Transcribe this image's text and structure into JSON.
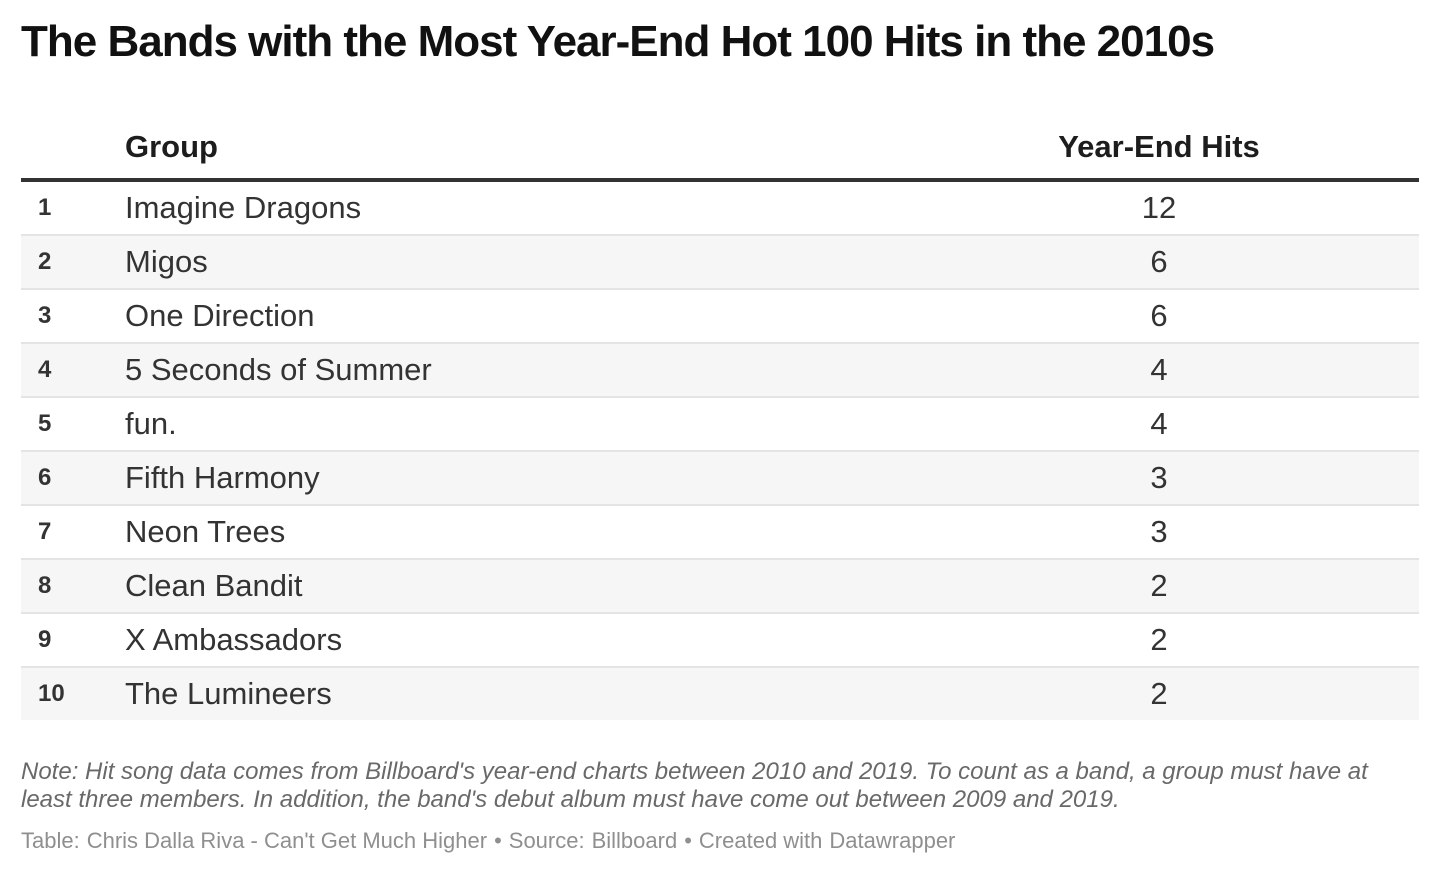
{
  "chart_data": {
    "type": "table",
    "title": "The Bands with the Most Year-End Hot 100 Hits in the 2010s",
    "columns": {
      "rank": "",
      "group": "Group",
      "hits": "Year-End Hits"
    },
    "rows": [
      {
        "rank": "1",
        "group": "Imagine Dragons",
        "hits": "12"
      },
      {
        "rank": "2",
        "group": "Migos",
        "hits": "6"
      },
      {
        "rank": "3",
        "group": "One Direction",
        "hits": "6"
      },
      {
        "rank": "4",
        "group": "5 Seconds of Summer",
        "hits": "4"
      },
      {
        "rank": "5",
        "group": "fun.",
        "hits": "4"
      },
      {
        "rank": "6",
        "group": "Fifth Harmony",
        "hits": "3"
      },
      {
        "rank": "7",
        "group": "Neon Trees",
        "hits": "3"
      },
      {
        "rank": "8",
        "group": "Clean Bandit",
        "hits": "2"
      },
      {
        "rank": "9",
        "group": "X Ambassadors",
        "hits": "2"
      },
      {
        "rank": "10",
        "group": "The Lumineers",
        "hits": "2"
      }
    ],
    "layout_hints": {
      "striped": true,
      "stripe_on": "even-rows",
      "rank_column": true,
      "hits_alignment": "center"
    }
  },
  "note": "Note: Hit song data comes from Billboard's year-end charts between 2010 and 2019. To count as a band, a group must have at least three members. In addition, the band's debut album must have come out between 2009 and 2019.",
  "attribution": {
    "table_label": "Table:",
    "table_value": "Chris Dalla Riva - Can't Get Much Higher",
    "bullet": "•",
    "source_label": "Source:",
    "source_value": "Billboard",
    "bullet2": "•",
    "created_label": "Created with",
    "created_value": "Datawrapper"
  },
  "colors": {
    "title_text": "#111111",
    "body_text": "#333333",
    "header_rule": "#333333",
    "row_separator": "#e4e4e4",
    "row_stripe": "#f6f6f6",
    "note_text": "#696969",
    "attribution_text": "#8f8f8f",
    "background": "#ffffff"
  }
}
